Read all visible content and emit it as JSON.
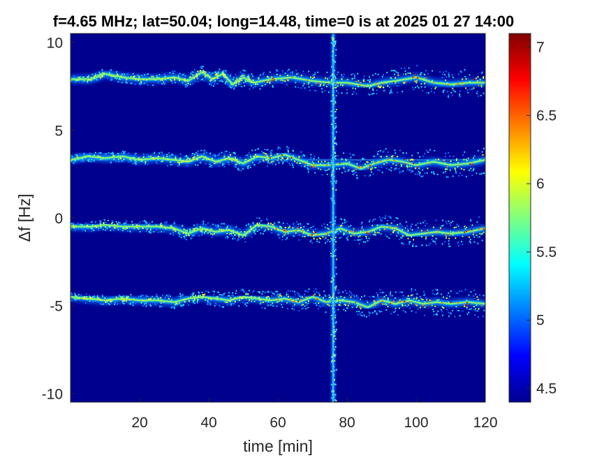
{
  "chart_data": {
    "type": "heatmap",
    "title": "f=4.65 MHz;  lat=50.04; long=14.48, time=0 is at 2025 01 27 14:00",
    "xlabel": "time [min]",
    "ylabel": "Δf [Hz]",
    "xlim": [
      0,
      120
    ],
    "ylim": [
      -10.5,
      10.5
    ],
    "xticks": [
      20,
      40,
      60,
      80,
      100,
      120
    ],
    "xtick_labels": [
      "20",
      "40",
      "60",
      "80",
      "100",
      "120"
    ],
    "yticks": [
      10,
      5,
      0,
      -5,
      -10
    ],
    "ytick_labels": [
      "10",
      "5",
      "0",
      "-5",
      "-10"
    ],
    "colorbar": {
      "colormap": "jet",
      "clim": [
        4.4,
        7.1
      ],
      "ticks": [
        7,
        6.5,
        6,
        5.5,
        5,
        4.5
      ],
      "tick_labels": [
        "7",
        "6.5",
        "6",
        "5.5",
        "5",
        "4.5"
      ]
    },
    "background_color": "#00008f",
    "grid": false,
    "bands": [
      {
        "name": "",
        "points": [
          [
            0,
            7.9
          ],
          [
            6,
            7.9
          ],
          [
            10,
            8.2
          ],
          [
            15,
            8.0
          ],
          [
            20,
            7.9
          ],
          [
            25,
            7.9
          ],
          [
            30,
            8.0
          ],
          [
            34,
            7.8
          ],
          [
            38,
            8.3
          ],
          [
            41,
            7.9
          ],
          [
            44,
            8.2
          ],
          [
            47,
            7.6
          ],
          [
            50,
            8.0
          ],
          [
            53,
            7.7
          ],
          [
            58,
            7.9
          ],
          [
            64,
            8.0
          ],
          [
            70,
            7.8
          ],
          [
            75,
            7.7
          ],
          [
            80,
            7.7
          ],
          [
            86,
            7.5
          ],
          [
            90,
            7.7
          ],
          [
            94,
            7.8
          ],
          [
            100,
            8.0
          ],
          [
            105,
            7.7
          ],
          [
            110,
            7.6
          ],
          [
            115,
            7.7
          ],
          [
            120,
            7.7
          ]
        ]
      },
      {
        "name": "",
        "points": [
          [
            0,
            3.3
          ],
          [
            5,
            3.5
          ],
          [
            10,
            3.4
          ],
          [
            15,
            3.5
          ],
          [
            20,
            3.3
          ],
          [
            25,
            3.4
          ],
          [
            30,
            3.3
          ],
          [
            34,
            3.2
          ],
          [
            38,
            3.5
          ],
          [
            42,
            3.2
          ],
          [
            46,
            3.4
          ],
          [
            50,
            3.1
          ],
          [
            54,
            3.5
          ],
          [
            58,
            3.4
          ],
          [
            62,
            3.6
          ],
          [
            66,
            3.3
          ],
          [
            70,
            3.0
          ],
          [
            75,
            3.0
          ],
          [
            80,
            3.1
          ],
          [
            84,
            2.8
          ],
          [
            88,
            3.1
          ],
          [
            92,
            3.3
          ],
          [
            96,
            3.2
          ],
          [
            100,
            3.0
          ],
          [
            105,
            3.2
          ],
          [
            110,
            3.0
          ],
          [
            115,
            3.1
          ],
          [
            120,
            3.3
          ]
        ]
      },
      {
        "name": "",
        "points": [
          [
            0,
            -0.5
          ],
          [
            6,
            -0.5
          ],
          [
            10,
            -0.4
          ],
          [
            15,
            -0.5
          ],
          [
            20,
            -0.5
          ],
          [
            25,
            -0.5
          ],
          [
            30,
            -0.6
          ],
          [
            34,
            -0.9
          ],
          [
            38,
            -0.6
          ],
          [
            42,
            -0.8
          ],
          [
            46,
            -0.7
          ],
          [
            50,
            -1.0
          ],
          [
            54,
            -0.4
          ],
          [
            58,
            -0.5
          ],
          [
            62,
            -0.8
          ],
          [
            66,
            -0.7
          ],
          [
            70,
            -1.0
          ],
          [
            74,
            -0.9
          ],
          [
            78,
            -0.6
          ],
          [
            82,
            -0.9
          ],
          [
            86,
            -0.8
          ],
          [
            90,
            -0.5
          ],
          [
            94,
            -0.6
          ],
          [
            98,
            -1.0
          ],
          [
            102,
            -0.9
          ],
          [
            106,
            -0.8
          ],
          [
            110,
            -0.9
          ],
          [
            115,
            -0.8
          ],
          [
            120,
            -0.6
          ]
        ]
      },
      {
        "name": "",
        "points": [
          [
            0,
            -4.5
          ],
          [
            5,
            -4.6
          ],
          [
            10,
            -4.7
          ],
          [
            15,
            -4.6
          ],
          [
            20,
            -4.7
          ],
          [
            25,
            -4.7
          ],
          [
            30,
            -4.8
          ],
          [
            34,
            -4.6
          ],
          [
            38,
            -4.5
          ],
          [
            42,
            -4.6
          ],
          [
            46,
            -4.7
          ],
          [
            50,
            -4.5
          ],
          [
            54,
            -4.6
          ],
          [
            58,
            -4.7
          ],
          [
            62,
            -4.6
          ],
          [
            66,
            -4.8
          ],
          [
            70,
            -4.5
          ],
          [
            74,
            -4.8
          ],
          [
            78,
            -4.7
          ],
          [
            82,
            -4.8
          ],
          [
            86,
            -5.1
          ],
          [
            90,
            -4.7
          ],
          [
            94,
            -4.9
          ],
          [
            98,
            -4.7
          ],
          [
            102,
            -4.9
          ],
          [
            106,
            -4.8
          ],
          [
            110,
            -4.9
          ],
          [
            115,
            -4.8
          ],
          [
            120,
            -4.9
          ]
        ]
      }
    ],
    "vertical_interference_time": 76,
    "horizontal_line_df": 3.3
  }
}
